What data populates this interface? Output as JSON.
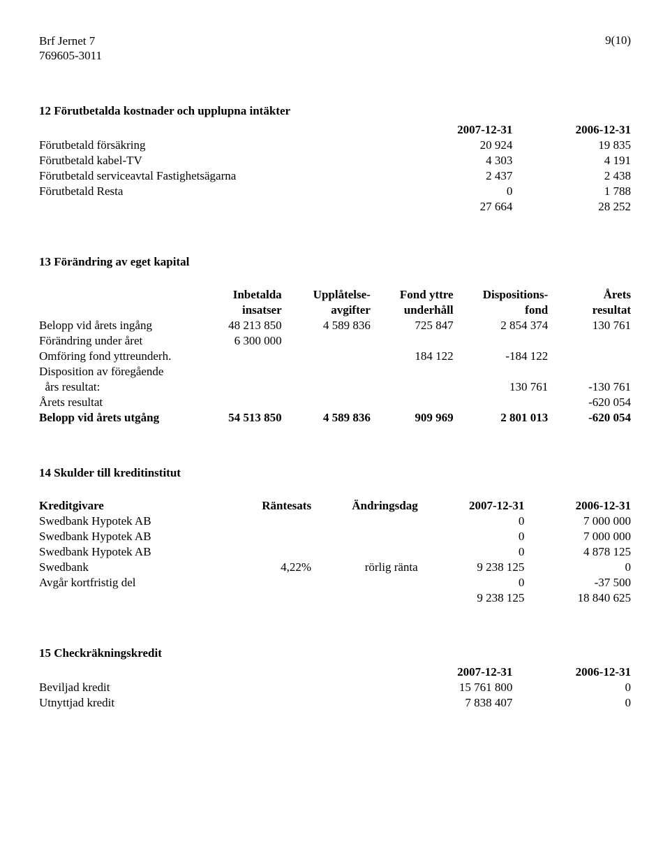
{
  "header": {
    "org_name": "Brf Jernet 7",
    "org_id": "769605-3011",
    "page_num": "9(10)"
  },
  "sec12": {
    "title": "12 Förutbetalda kostnader och upplupna intäkter",
    "col_2007": "2007-12-31",
    "col_2006": "2006-12-31",
    "rows": [
      {
        "label": "Förutbetald försäkring",
        "a": "20 924",
        "b": "19 835"
      },
      {
        "label": "Förutbetald kabel-TV",
        "a": "4 303",
        "b": "4 191"
      },
      {
        "label": "Förutbetald serviceavtal Fastighetsägarna",
        "a": "2 437",
        "b": "2 438"
      },
      {
        "label": "Förutbetald Resta",
        "a": "0",
        "b": "1 788"
      }
    ],
    "sum": {
      "a": "27 664",
      "b": "28 252"
    }
  },
  "sec13": {
    "title": "13 Förändring av eget kapital",
    "head": {
      "c1a": "Inbetalda",
      "c1b": "insatser",
      "c2a": "Upplåtelse-",
      "c2b": "avgifter",
      "c3a": "Fond yttre",
      "c3b": "underhåll",
      "c4a": "Dispositions-",
      "c4b": "fond",
      "c5a": "Årets",
      "c5b": "resultat"
    },
    "rows": {
      "r1": {
        "label": "Belopp vid årets ingång",
        "v1": "48 213 850",
        "v2": "4 589 836",
        "v3": "725 847",
        "v4": "2 854 374",
        "v5": "130 761"
      },
      "r2": {
        "label": "Förändring under året",
        "v1": "6 300 000",
        "v2": "",
        "v3": "",
        "v4": "",
        "v5": ""
      },
      "r3": {
        "label": "Omföring fond yttreunderh.",
        "v1": "",
        "v2": "",
        "v3": "184 122",
        "v4": "-184 122",
        "v5": ""
      },
      "r4": {
        "label": "Disposition av föregående",
        "v1": "",
        "v2": "",
        "v3": "",
        "v4": "",
        "v5": ""
      },
      "r5": {
        "label": "  års resultat:",
        "v1": "",
        "v2": "",
        "v3": "",
        "v4": "130 761",
        "v5": "-130 761"
      },
      "r6": {
        "label": "Årets resultat",
        "v1": "",
        "v2": "",
        "v3": "",
        "v4": "",
        "v5": "-620 054"
      },
      "r7": {
        "label": "Belopp vid årets utgång",
        "v1": "54 513 850",
        "v2": "4 589 836",
        "v3": "909 969",
        "v4": "2 801 013",
        "v5": "-620 054"
      }
    }
  },
  "sec14": {
    "title": "14 Skulder till kreditinstitut",
    "head": {
      "c1": "Kreditgivare",
      "c2": "Räntesats",
      "c3": "Ändringsdag",
      "c4": "2007-12-31",
      "c5": "2006-12-31"
    },
    "rows": [
      {
        "label": "Swedbank Hypotek AB",
        "rate": "",
        "chg": "",
        "a": "0",
        "b": "7 000 000"
      },
      {
        "label": "Swedbank Hypotek AB",
        "rate": "",
        "chg": "",
        "a": "0",
        "b": "7 000 000"
      },
      {
        "label": "Swedbank Hypotek AB",
        "rate": "",
        "chg": "",
        "a": "0",
        "b": "4 878 125"
      },
      {
        "label": "Swedbank",
        "rate": "4,22%",
        "chg": "rörlig ränta",
        "a": "9 238 125",
        "b": "0"
      },
      {
        "label": "Avgår kortfristig del",
        "rate": "",
        "chg": "",
        "a": "0",
        "b": "-37 500"
      }
    ],
    "sum": {
      "a": "9 238 125",
      "b": "18 840 625"
    }
  },
  "sec15": {
    "title": "15 Checkräkningskredit",
    "col_2007": "2007-12-31",
    "col_2006": "2006-12-31",
    "rows": [
      {
        "label": "Beviljad kredit",
        "a": "15 761 800",
        "b": "0"
      },
      {
        "label": "Utnyttjad kredit",
        "a": "7 838 407",
        "b": "0"
      }
    ]
  }
}
